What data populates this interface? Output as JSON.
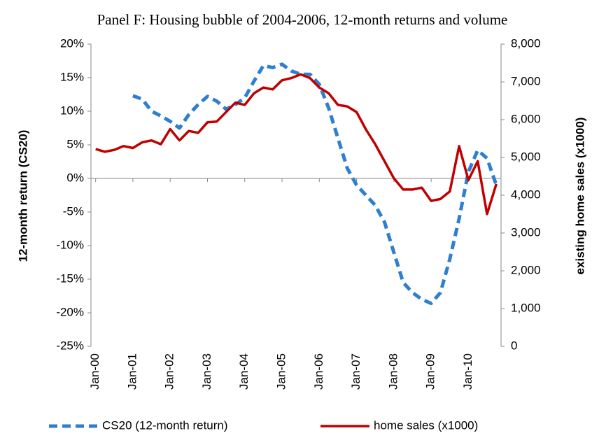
{
  "chart_data": {
    "type": "line",
    "title": "Panel F: Housing bubble of 2004-2006, 12-month returns and volume",
    "y_label": "12-month return (CS20)",
    "y2_label": "existing home sales (x1000)",
    "categories": [
      "Jan-00",
      null,
      null,
      null,
      "Jan-01",
      null,
      null,
      null,
      "Jan-02",
      null,
      null,
      null,
      "Jan-03",
      null,
      null,
      null,
      "Jan-04",
      null,
      null,
      null,
      "Jan-05",
      null,
      null,
      null,
      "Jan-06",
      null,
      null,
      null,
      "Jan-07",
      null,
      null,
      null,
      "Jan-08",
      null,
      null,
      null,
      "Jan-09",
      null,
      null,
      null,
      "Jan-10",
      null,
      null,
      null
    ],
    "series": [
      {
        "name": "CS20 (12-month return)",
        "color": "#2f7fd0",
        "dashed": true,
        "values": [
          null,
          null,
          null,
          null,
          12.3,
          11.8,
          10.0,
          9.3,
          8.5,
          7.5,
          9.5,
          11.0,
          12.2,
          11.5,
          10.3,
          11.0,
          12.0,
          14.5,
          16.8,
          16.5,
          17.0,
          16.0,
          15.5,
          15.5,
          14.0,
          10.5,
          6.0,
          1.5,
          -1.0,
          -2.5,
          -4.0,
          -6.5,
          -11.0,
          -15.5,
          -17.0,
          -18.0,
          -18.6,
          -17.0,
          -12.0,
          -6.0,
          1.0,
          4.2,
          3.0,
          -1.0
        ]
      },
      {
        "name": "home sales (x1000)",
        "color": "#c00000",
        "axis": "y2",
        "values": [
          5220,
          5150,
          5200,
          5300,
          5250,
          5400,
          5450,
          5350,
          5750,
          5450,
          5700,
          5650,
          5930,
          5950,
          6200,
          6450,
          6390,
          6700,
          6850,
          6800,
          7040,
          7100,
          7200,
          7100,
          6850,
          6700,
          6390,
          6350,
          6200,
          5740,
          5350,
          4900,
          4450,
          4150,
          4150,
          4200,
          3850,
          3900,
          4100,
          5300,
          4400,
          4900,
          3500,
          4300
        ]
      }
    ],
    "ylim": [
      -25,
      20
    ],
    "yticks": [
      {
        "value": -25,
        "label": "-25%"
      },
      {
        "value": -20,
        "label": "-20%"
      },
      {
        "value": -15,
        "label": "-15%"
      },
      {
        "value": -10,
        "label": "-10%"
      },
      {
        "value": -5,
        "label": "-5%"
      },
      {
        "value": 0,
        "label": "0%"
      },
      {
        "value": 5,
        "label": "5%"
      },
      {
        "value": 10,
        "label": "10%"
      },
      {
        "value": 15,
        "label": "15%"
      },
      {
        "value": 20,
        "label": "20%"
      }
    ],
    "y2lim": [
      0,
      8000
    ],
    "y2ticks": [
      0,
      {
        "value": 1000,
        "label": "1,000"
      },
      {
        "value": 2000,
        "label": "2,000"
      },
      {
        "value": 3000,
        "label": "3,000"
      },
      {
        "value": 4000,
        "label": "4,000"
      },
      {
        "value": 5000,
        "label": "5,000"
      },
      {
        "value": 6000,
        "label": "6,000"
      },
      {
        "value": 7000,
        "label": "7,000"
      },
      {
        "value": 8000,
        "label": "8,000"
      }
    ]
  }
}
